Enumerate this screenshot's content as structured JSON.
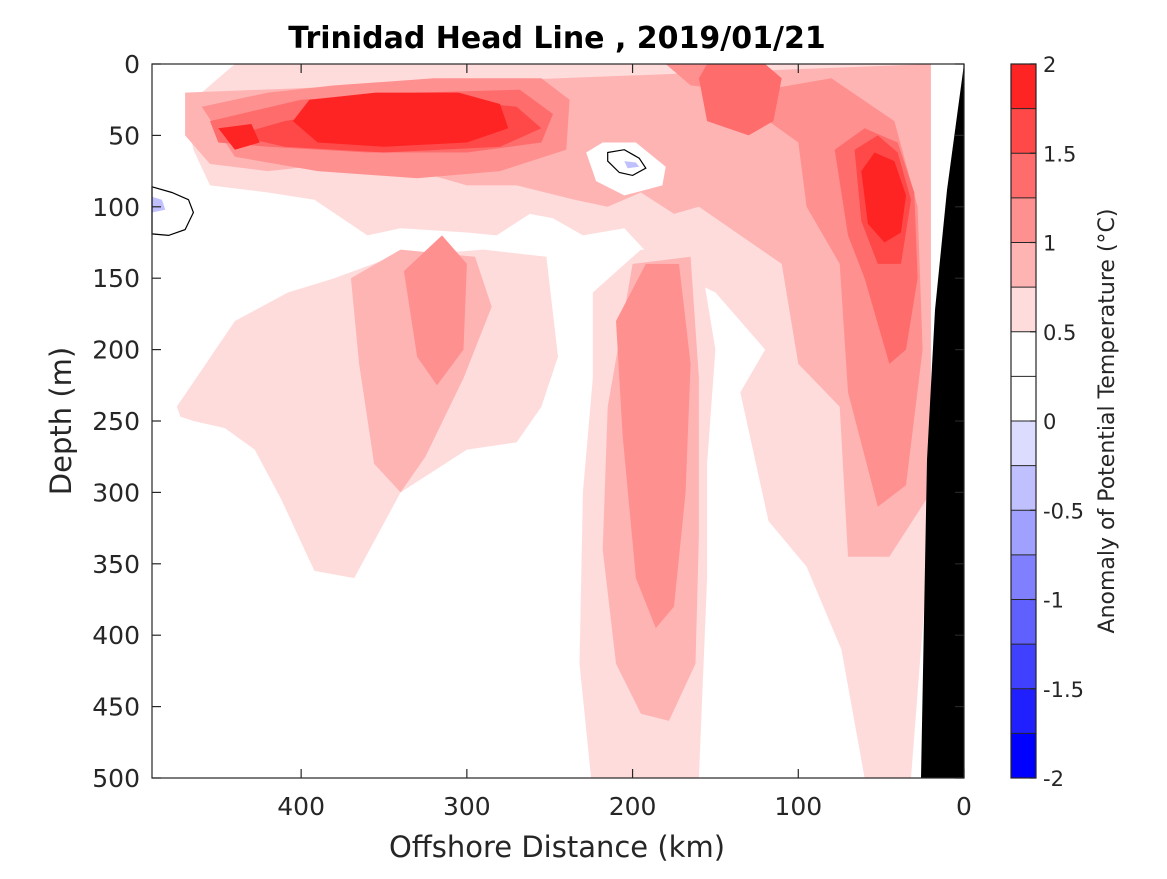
{
  "chart_data": {
    "type": "heatmap",
    "subtype": "filled-contour section",
    "title": "Trinidad Head Line , 2019/01/21",
    "xlabel": "Offshore Distance (km)",
    "ylabel": "Depth (m)",
    "xlim": [
      490,
      0
    ],
    "x_reversed": true,
    "ylim": [
      0,
      500
    ],
    "y_reversed": true,
    "x_ticks": [
      "400",
      "300",
      "200",
      "100",
      "0"
    ],
    "x_tick_values": [
      400,
      300,
      200,
      100,
      0
    ],
    "y_ticks": [
      "0",
      "50",
      "100",
      "150",
      "200",
      "250",
      "300",
      "350",
      "400",
      "450",
      "500"
    ],
    "y_tick_values": [
      0,
      50,
      100,
      150,
      200,
      250,
      300,
      350,
      400,
      450,
      500
    ],
    "colorbar": {
      "label": "Anomaly of Potential Temperature (°C)",
      "range": [
        -2,
        2
      ],
      "levels": [
        -2,
        -1.75,
        -1.5,
        -1.25,
        -1,
        -0.75,
        -0.5,
        -0.25,
        0,
        0.25,
        0.5,
        0.75,
        1,
        1.25,
        1.5,
        1.75,
        2
      ],
      "tick_values": [
        2,
        1.5,
        1,
        0.5,
        0,
        -0.5,
        -1,
        -1.5,
        -2
      ],
      "tick_labels": [
        "2",
        "1.5",
        "1",
        "0.5",
        "0",
        "-0.5",
        "-1",
        "-1.5",
        "-2"
      ],
      "colors": [
        "#0000ff",
        "#2020ff",
        "#4040ff",
        "#6060ff",
        "#8080ff",
        "#a0a0ff",
        "#c0c0ff",
        "#dcdcff",
        "#ffffff",
        "#ffffff",
        "#ffdcdc",
        "#ffb4b4",
        "#ff9090",
        "#ff6c6c",
        "#ff4848",
        "#ff2424",
        "#ff0000"
      ]
    },
    "grid": false,
    "bathymetry_color": "#000000",
    "contour_line_level": -0.25,
    "features": [
      {
        "desc": "warm core near surface",
        "x_range": [
          470,
          245
        ],
        "depth_range": [
          10,
          70
        ],
        "anomaly": 2.0
      },
      {
        "desc": "warm core near surface",
        "x_range": [
          180,
          120
        ],
        "depth_range": [
          0,
          50
        ],
        "anomaly": 1.5
      },
      {
        "desc": "nearshore warm core",
        "x_range": [
          75,
          30
        ],
        "depth_range": [
          40,
          120
        ],
        "anomaly": 2.0
      },
      {
        "desc": "subsurface warm tongue",
        "x_range": [
          195,
          165
        ],
        "depth_range": [
          140,
          370
        ],
        "anomaly": 1.0
      },
      {
        "desc": "subsurface warm tongue",
        "x_range": [
          335,
          300
        ],
        "depth_range": [
          130,
          230
        ],
        "anomaly": 1.0
      },
      {
        "desc": "nearshore warm column",
        "x_range": [
          75,
          35
        ],
        "depth_range": [
          120,
          360
        ],
        "anomaly": 1.0
      },
      {
        "desc": "weak cool patch",
        "x_range": [
          490,
          465
        ],
        "depth_range": [
          85,
          120
        ],
        "anomaly": -0.3
      },
      {
        "desc": "weak cool patch",
        "x_range": [
          215,
          190
        ],
        "depth_range": [
          60,
          85
        ],
        "anomaly": -0.3
      }
    ]
  }
}
